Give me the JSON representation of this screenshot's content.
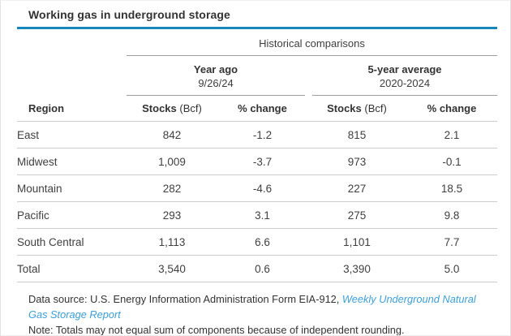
{
  "colors": {
    "accent_rule": "#1886ba",
    "link_blue": "#3d9fd6",
    "group_line": "#9e9e9e",
    "row_line": "#cdcdcd",
    "text": "#333333"
  },
  "title": "Working gas in underground storage",
  "table": {
    "span_header": "Historical comparisons",
    "groups": [
      {
        "label": "Year ago",
        "sublabel": "9/26/24"
      },
      {
        "label": "5-year average",
        "sublabel": "2020-2024"
      }
    ],
    "region_header": "Region",
    "stocks_label": "Stocks",
    "stocks_unit": "(Bcf)",
    "pct_label": "% change",
    "rows": [
      {
        "region": "East",
        "c0": "842",
        "c1": "-1.2",
        "c2": "815",
        "c3": "2.1"
      },
      {
        "region": "Midwest",
        "c0": "1,009",
        "c1": "-3.7",
        "c2": "973",
        "c3": "-0.1"
      },
      {
        "region": "Mountain",
        "c0": "282",
        "c1": "-4.6",
        "c2": "227",
        "c3": "18.5"
      },
      {
        "region": "Pacific",
        "c0": "293",
        "c1": "3.1",
        "c2": "275",
        "c3": "9.8"
      },
      {
        "region": "South Central",
        "c0": "1,113",
        "c1": "6.6",
        "c2": "1,101",
        "c3": "7.7"
      },
      {
        "region": "Total",
        "c0": "3,540",
        "c1": "0.6",
        "c2": "3,390",
        "c3": "5.0"
      }
    ]
  },
  "footer": {
    "datasource_prefix": "Data source: U.S. Energy Information Administration Form EIA-912, ",
    "link_text": "Weekly Underground Natural Gas Storage Report",
    "note": "Note: Totals may not equal sum of components because of independent rounding."
  },
  "chart_data": {
    "type": "table",
    "title": "Working gas in underground storage",
    "group_header": "Historical comparisons",
    "column_groups": [
      {
        "label": "Year ago 9/26/24",
        "columns": [
          "Stocks (Bcf)",
          "% change"
        ]
      },
      {
        "label": "5-year average 2020-2024",
        "columns": [
          "Stocks (Bcf)",
          "% change"
        ]
      }
    ],
    "columns": [
      "Region",
      "Stocks (Bcf) year ago",
      "% change year ago",
      "Stocks (Bcf) 5-yr avg",
      "% change 5-yr avg"
    ],
    "rows": [
      [
        "East",
        842,
        -1.2,
        815,
        2.1
      ],
      [
        "Midwest",
        1009,
        -3.7,
        973,
        -0.1
      ],
      [
        "Mountain",
        282,
        -4.6,
        227,
        18.5
      ],
      [
        "Pacific",
        293,
        3.1,
        275,
        9.8
      ],
      [
        "South Central",
        1113,
        6.6,
        1101,
        7.7
      ],
      [
        "Total",
        3540,
        0.6,
        3390,
        5.0
      ]
    ],
    "notes": [
      "Data source: U.S. Energy Information Administration Form EIA-912, Weekly Underground Natural Gas Storage Report",
      "Note: Totals may not equal sum of components because of independent rounding."
    ]
  }
}
